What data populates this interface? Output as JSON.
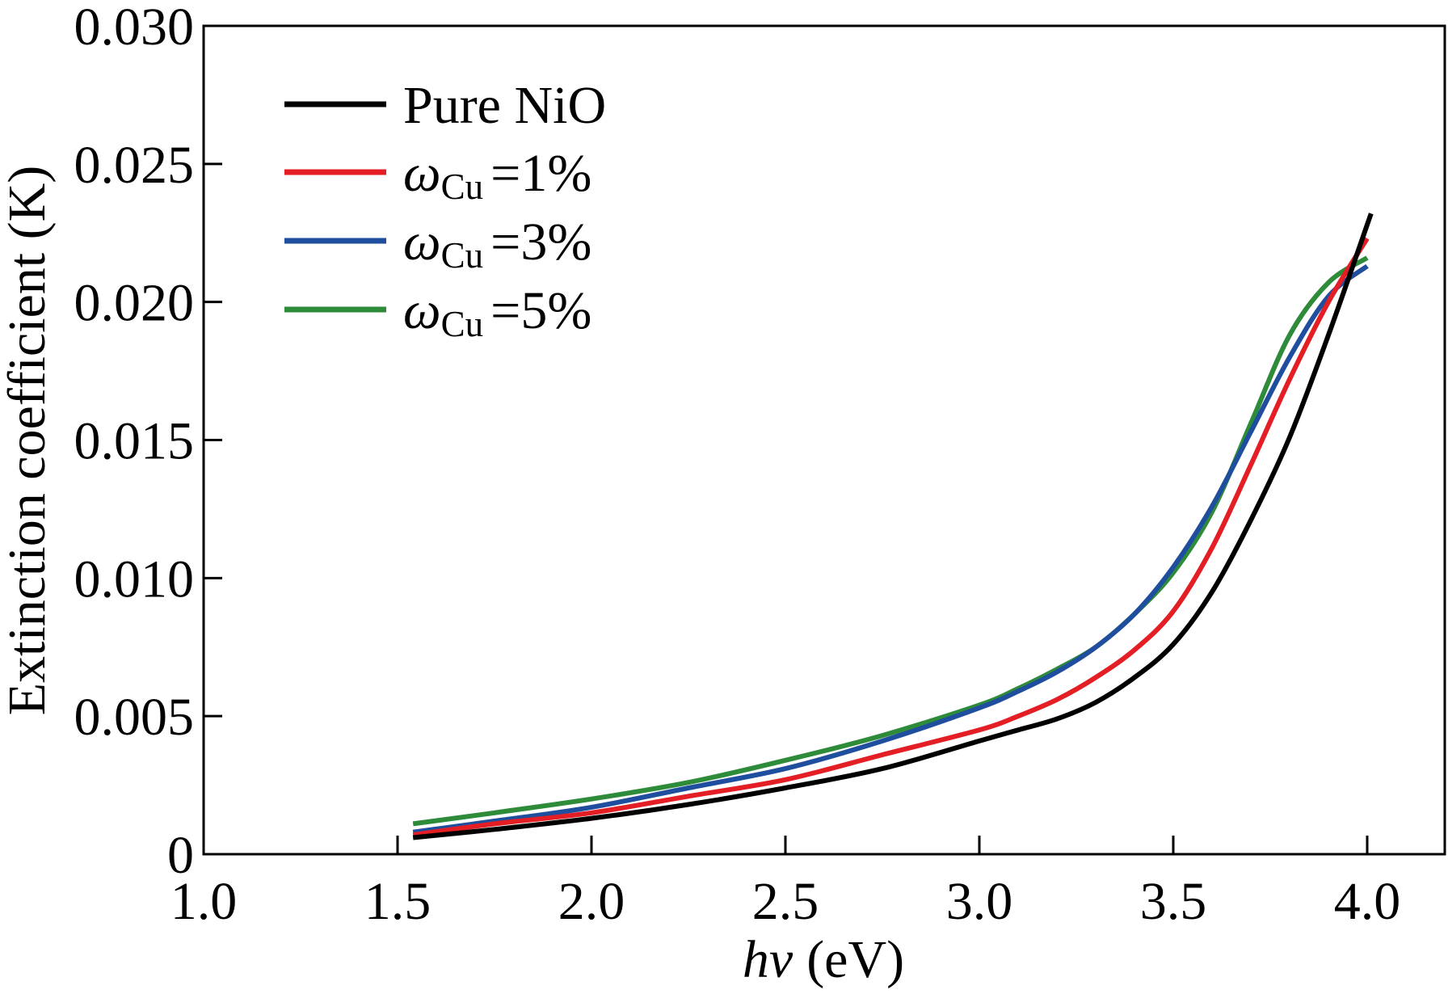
{
  "chart_data": {
    "type": "line",
    "xlabel": {
      "var": "hv",
      "unit": "(eV)"
    },
    "ylabel": "Extinction coefficient (K)",
    "xlim": [
      1.0,
      4.2
    ],
    "ylim": [
      0,
      0.03
    ],
    "xticks": {
      "values": [
        1.0,
        1.5,
        2.0,
        2.5,
        3.0,
        3.5,
        4.0
      ],
      "labels": [
        "1.0",
        "1.5",
        "2.0",
        "2.5",
        "3.0",
        "3.5",
        "4.0"
      ]
    },
    "yticks": {
      "values": [
        0,
        0.005,
        0.01,
        0.015,
        0.02,
        0.025,
        0.03
      ],
      "labels": [
        "0",
        "0.005",
        "0.010",
        "0.015",
        "0.020",
        "0.025",
        "0.030"
      ]
    },
    "grid": false,
    "legend_position": "top-left",
    "series": [
      {
        "legend": {
          "main": "Pure NiO"
        },
        "color": "#000000",
        "x": [
          1.54,
          1.75,
          2.0,
          2.25,
          2.5,
          2.75,
          3.0,
          3.1,
          3.2,
          3.3,
          3.4,
          3.5,
          3.6,
          3.7,
          3.8,
          3.9,
          4.01
        ],
        "y": [
          0.0006,
          0.0009,
          0.0013,
          0.0018,
          0.0024,
          0.0031,
          0.0041,
          0.0045,
          0.0049,
          0.0055,
          0.0064,
          0.0076,
          0.0095,
          0.0121,
          0.0151,
          0.0188,
          0.0232
        ]
      },
      {
        "legend": {
          "main": "ω",
          "sub": "Cu",
          "suffix": "=1%"
        },
        "color": "#e31e24",
        "x": [
          1.54,
          1.75,
          2.0,
          2.25,
          2.5,
          2.75,
          3.0,
          3.1,
          3.2,
          3.3,
          3.4,
          3.5,
          3.6,
          3.7,
          3.8,
          3.9,
          4.0
        ],
        "y": [
          0.0007,
          0.0011,
          0.0015,
          0.0021,
          0.0027,
          0.0036,
          0.0045,
          0.005,
          0.0056,
          0.0064,
          0.0074,
          0.0088,
          0.0111,
          0.0141,
          0.0172,
          0.02,
          0.0223
        ]
      },
      {
        "legend": {
          "main": "ω",
          "sub": "Cu",
          "suffix": "=3%"
        },
        "color": "#1f4e9e",
        "x": [
          1.54,
          1.75,
          2.0,
          2.25,
          2.5,
          2.75,
          3.0,
          3.1,
          3.2,
          3.3,
          3.4,
          3.5,
          3.6,
          3.7,
          3.8,
          3.9,
          4.0
        ],
        "y": [
          0.0008,
          0.0012,
          0.0017,
          0.0024,
          0.0031,
          0.0041,
          0.0053,
          0.0059,
          0.0066,
          0.0075,
          0.0087,
          0.0104,
          0.0126,
          0.0153,
          0.018,
          0.0202,
          0.0213
        ]
      },
      {
        "legend": {
          "main": "ω",
          "sub": "Cu",
          "suffix": "=5%"
        },
        "color": "#2e8b3a",
        "x": [
          1.54,
          1.75,
          2.0,
          2.25,
          2.5,
          2.75,
          3.0,
          3.1,
          3.2,
          3.3,
          3.4,
          3.5,
          3.6,
          3.7,
          3.8,
          3.9,
          4.0
        ],
        "y": [
          0.0011,
          0.0015,
          0.002,
          0.0026,
          0.0034,
          0.0043,
          0.0054,
          0.006,
          0.0067,
          0.0075,
          0.0087,
          0.0102,
          0.0124,
          0.0156,
          0.0188,
          0.0207,
          0.0216
        ]
      }
    ]
  }
}
